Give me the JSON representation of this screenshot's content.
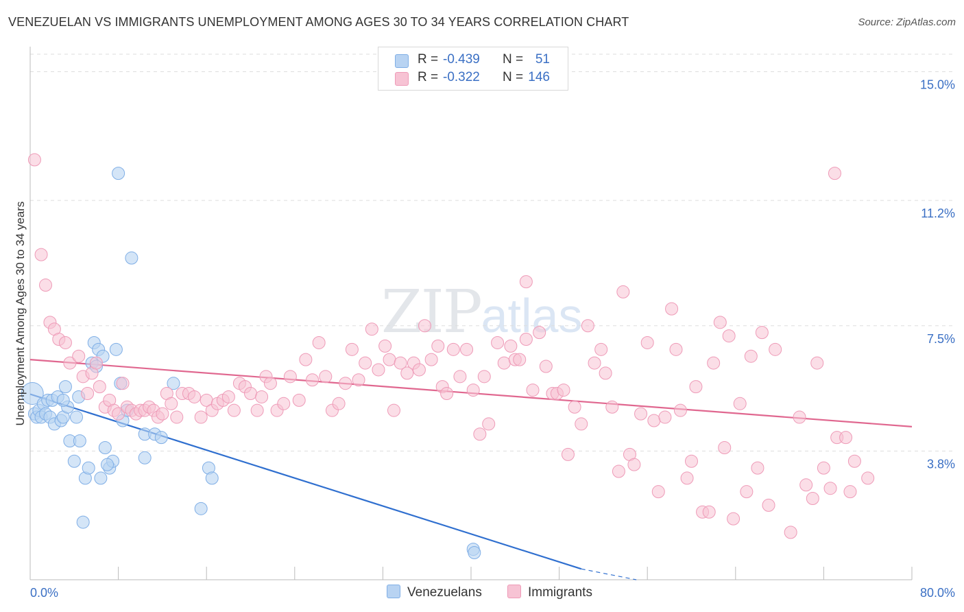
{
  "title": "VENEZUELAN VS IMMIGRANTS UNEMPLOYMENT AMONG AGES 30 TO 34 YEARS CORRELATION CHART",
  "source": "Source: ZipAtlas.com",
  "watermark": {
    "zip": "ZIP",
    "atlas": "atlas"
  },
  "legend": {
    "venezuelans": {
      "r_label": "R =",
      "r_value": "-0.439",
      "n_label": "N =",
      "n_value": "51"
    },
    "immigrants": {
      "r_label": "R =",
      "r_value": "-0.322",
      "n_label": "N =",
      "n_value": "146"
    }
  },
  "bottom_legend": {
    "venezuelans": "Venezuelans",
    "immigrants": "Immigrants"
  },
  "colors": {
    "venezuelans_fill": "#b8d3f2",
    "venezuelans_stroke": "#7faee6",
    "venezuelans_line": "#2f6fcf",
    "immigrants_fill": "#f7c3d4",
    "immigrants_stroke": "#ee9ab7",
    "immigrants_line": "#e0678f",
    "tick_label": "#3a6fc4",
    "grid": "#dddddd"
  },
  "chart_data": {
    "type": "scatter",
    "title": "VENEZUELAN VS IMMIGRANTS UNEMPLOYMENT AMONG AGES 30 TO 34 YEARS CORRELATION CHART",
    "xlabel": "",
    "ylabel": "Unemployment Among Ages 30 to 34 years",
    "xlim": [
      0,
      80
    ],
    "ylim": [
      0,
      15.7
    ],
    "x_tick_labels": [
      "0.0%",
      "80.0%"
    ],
    "y_ticks": [
      3.8,
      7.5,
      11.2,
      15.0
    ],
    "y_tick_labels": [
      "3.8%",
      "7.5%",
      "11.2%",
      "15.0%"
    ],
    "grid": true,
    "legend_position": "top-center",
    "series": [
      {
        "name": "Venezuelans",
        "points": [
          [
            0.2,
            5.5
          ],
          [
            0.4,
            4.9
          ],
          [
            0.6,
            4.8
          ],
          [
            0.8,
            5.0
          ],
          [
            1.0,
            4.8
          ],
          [
            1.2,
            5.2
          ],
          [
            1.4,
            4.9
          ],
          [
            1.6,
            5.3
          ],
          [
            1.8,
            4.8
          ],
          [
            2.0,
            5.3
          ],
          [
            2.2,
            4.6
          ],
          [
            2.5,
            5.4
          ],
          [
            2.8,
            4.7
          ],
          [
            3.0,
            4.8
          ],
          [
            3.2,
            5.7
          ],
          [
            3.4,
            5.1
          ],
          [
            3.6,
            4.1
          ],
          [
            4.0,
            3.5
          ],
          [
            4.2,
            4.8
          ],
          [
            4.5,
            4.1
          ],
          [
            4.8,
            1.7
          ],
          [
            5.0,
            3.0
          ],
          [
            5.3,
            3.3
          ],
          [
            5.6,
            6.4
          ],
          [
            5.8,
            7.0
          ],
          [
            6.0,
            6.3
          ],
          [
            6.2,
            6.8
          ],
          [
            6.4,
            3.0
          ],
          [
            6.6,
            6.6
          ],
          [
            6.8,
            3.9
          ],
          [
            7.2,
            3.3
          ],
          [
            7.5,
            3.5
          ],
          [
            7.8,
            6.8
          ],
          [
            8.0,
            12.0
          ],
          [
            8.2,
            5.8
          ],
          [
            8.4,
            4.7
          ],
          [
            8.8,
            5.0
          ],
          [
            10.4,
            4.3
          ],
          [
            10.4,
            3.6
          ],
          [
            11.3,
            4.3
          ],
          [
            11.9,
            4.2
          ],
          [
            9.2,
            9.5
          ],
          [
            13.0,
            5.8
          ],
          [
            15.5,
            2.1
          ],
          [
            16.2,
            3.3
          ],
          [
            16.5,
            3.0
          ],
          [
            40.2,
            0.9
          ],
          [
            40.3,
            0.8
          ],
          [
            3.0,
            5.3
          ],
          [
            7.0,
            3.4
          ],
          [
            4.4,
            5.4
          ]
        ],
        "trend": {
          "x": [
            0,
            50
          ],
          "y": [
            5.48,
            0.32
          ],
          "dashed_to": [
            55,
            -0.2
          ]
        }
      },
      {
        "name": "Immigrants",
        "points": [
          [
            0.4,
            12.4
          ],
          [
            1.0,
            9.6
          ],
          [
            1.4,
            8.7
          ],
          [
            1.8,
            7.6
          ],
          [
            2.2,
            7.4
          ],
          [
            2.6,
            7.1
          ],
          [
            3.2,
            7.0
          ],
          [
            3.6,
            6.4
          ],
          [
            4.4,
            6.6
          ],
          [
            4.8,
            6.0
          ],
          [
            5.2,
            5.5
          ],
          [
            5.6,
            6.1
          ],
          [
            6.0,
            6.4
          ],
          [
            6.3,
            5.7
          ],
          [
            6.8,
            5.1
          ],
          [
            7.2,
            5.3
          ],
          [
            7.6,
            5.0
          ],
          [
            8.0,
            4.9
          ],
          [
            8.4,
            5.8
          ],
          [
            8.8,
            5.1
          ],
          [
            9.2,
            5.0
          ],
          [
            9.6,
            4.9
          ],
          [
            10.0,
            5.0
          ],
          [
            10.4,
            5.0
          ],
          [
            10.8,
            5.1
          ],
          [
            11.2,
            5.0
          ],
          [
            11.6,
            4.8
          ],
          [
            12.0,
            4.9
          ],
          [
            12.4,
            5.5
          ],
          [
            12.8,
            5.2
          ],
          [
            13.3,
            4.8
          ],
          [
            13.8,
            5.5
          ],
          [
            14.4,
            5.5
          ],
          [
            14.9,
            5.4
          ],
          [
            15.5,
            4.8
          ],
          [
            16.0,
            5.3
          ],
          [
            16.5,
            5.0
          ],
          [
            17.0,
            5.2
          ],
          [
            17.5,
            5.3
          ],
          [
            18.0,
            5.4
          ],
          [
            18.5,
            5.0
          ],
          [
            19.0,
            5.8
          ],
          [
            19.5,
            5.7
          ],
          [
            20.0,
            5.5
          ],
          [
            20.6,
            5.0
          ],
          [
            21.0,
            5.4
          ],
          [
            21.4,
            6.0
          ],
          [
            21.8,
            5.8
          ],
          [
            22.4,
            5.0
          ],
          [
            23.0,
            5.2
          ],
          [
            23.6,
            6.0
          ],
          [
            24.4,
            5.3
          ],
          [
            25.0,
            6.5
          ],
          [
            25.6,
            5.9
          ],
          [
            26.2,
            7.0
          ],
          [
            26.8,
            6.0
          ],
          [
            27.4,
            5.0
          ],
          [
            28.0,
            5.2
          ],
          [
            28.6,
            5.8
          ],
          [
            29.2,
            6.8
          ],
          [
            29.8,
            5.9
          ],
          [
            30.4,
            6.4
          ],
          [
            31.0,
            7.4
          ],
          [
            31.6,
            6.2
          ],
          [
            32.2,
            6.9
          ],
          [
            32.6,
            6.5
          ],
          [
            33.0,
            5.0
          ],
          [
            33.6,
            6.4
          ],
          [
            34.2,
            6.1
          ],
          [
            34.8,
            6.4
          ],
          [
            35.3,
            6.2
          ],
          [
            35.8,
            7.5
          ],
          [
            36.4,
            6.5
          ],
          [
            37.0,
            6.9
          ],
          [
            37.4,
            5.7
          ],
          [
            37.8,
            5.5
          ],
          [
            38.4,
            6.8
          ],
          [
            39.0,
            6.0
          ],
          [
            39.6,
            6.8
          ],
          [
            40.2,
            5.6
          ],
          [
            40.8,
            4.3
          ],
          [
            41.2,
            6.0
          ],
          [
            41.6,
            4.6
          ],
          [
            42.4,
            7.0
          ],
          [
            43.0,
            6.4
          ],
          [
            43.6,
            6.9
          ],
          [
            44.0,
            6.5
          ],
          [
            44.4,
            6.5
          ],
          [
            45.0,
            7.1
          ],
          [
            45.6,
            5.6
          ],
          [
            46.2,
            7.3
          ],
          [
            46.8,
            6.3
          ],
          [
            47.4,
            5.5
          ],
          [
            47.8,
            5.5
          ],
          [
            48.4,
            5.6
          ],
          [
            48.8,
            3.7
          ],
          [
            49.4,
            5.1
          ],
          [
            50.0,
            4.6
          ],
          [
            50.6,
            7.5
          ],
          [
            51.2,
            6.4
          ],
          [
            51.8,
            6.8
          ],
          [
            52.2,
            6.1
          ],
          [
            52.8,
            5.1
          ],
          [
            53.4,
            3.2
          ],
          [
            53.8,
            8.5
          ],
          [
            54.4,
            3.7
          ],
          [
            54.8,
            3.4
          ],
          [
            45.0,
            8.8
          ],
          [
            55.4,
            4.9
          ],
          [
            56.0,
            7.0
          ],
          [
            56.6,
            4.7
          ],
          [
            57.0,
            2.6
          ],
          [
            57.6,
            4.8
          ],
          [
            58.2,
            8.0
          ],
          [
            58.6,
            6.8
          ],
          [
            59.0,
            5.0
          ],
          [
            59.6,
            3.0
          ],
          [
            60.4,
            5.7
          ],
          [
            61.0,
            2.0
          ],
          [
            61.6,
            2.0
          ],
          [
            62.0,
            6.4
          ],
          [
            62.6,
            7.6
          ],
          [
            63.0,
            3.9
          ],
          [
            63.4,
            7.2
          ],
          [
            63.8,
            1.8
          ],
          [
            64.4,
            5.2
          ],
          [
            65.0,
            2.6
          ],
          [
            65.4,
            6.6
          ],
          [
            66.0,
            3.3
          ],
          [
            66.4,
            7.3
          ],
          [
            67.0,
            2.2
          ],
          [
            67.6,
            6.8
          ],
          [
            69.0,
            1.4
          ],
          [
            69.8,
            4.8
          ],
          [
            70.4,
            2.8
          ],
          [
            71.0,
            2.4
          ],
          [
            71.4,
            6.4
          ],
          [
            72.0,
            3.3
          ],
          [
            72.6,
            2.7
          ],
          [
            73.2,
            4.2
          ],
          [
            74.0,
            4.2
          ],
          [
            74.4,
            2.6
          ],
          [
            74.8,
            3.5
          ],
          [
            76.0,
            3.0
          ],
          [
            73.0,
            12.0
          ],
          [
            60.0,
            3.5
          ]
        ],
        "trend": {
          "x": [
            0,
            80
          ],
          "y": [
            6.5,
            4.52
          ]
        }
      }
    ]
  }
}
